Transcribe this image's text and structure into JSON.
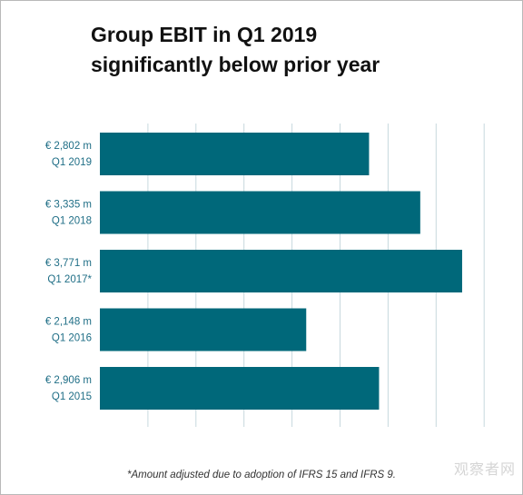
{
  "title_line1": "Group EBIT in Q1 2019",
  "title_line2": "significantly below prior year",
  "footnote": "*Amount adjusted due to adoption of IFRS 15 and IFRS 9.",
  "watermark": "观察者网",
  "colors": {
    "bar": "#00687a",
    "label": "#1f6e86",
    "grid": "#c7d8de"
  },
  "chart_data": {
    "type": "bar",
    "orientation": "horizontal",
    "categories": [
      "Q1 2019",
      "Q1 2018",
      "Q1 2017*",
      "Q1 2016",
      "Q1 2015"
    ],
    "value_labels": [
      "€ 2,802 m",
      "€ 3,335 m",
      "€ 3,771 m",
      "€ 2,148 m",
      "€ 2,906 m"
    ],
    "values": [
      2802,
      3335,
      3771,
      2148,
      2906
    ],
    "unit": "€ m",
    "xlim": [
      0,
      4000
    ],
    "grid": true,
    "title": "Group EBIT in Q1 2019 significantly below prior year"
  }
}
